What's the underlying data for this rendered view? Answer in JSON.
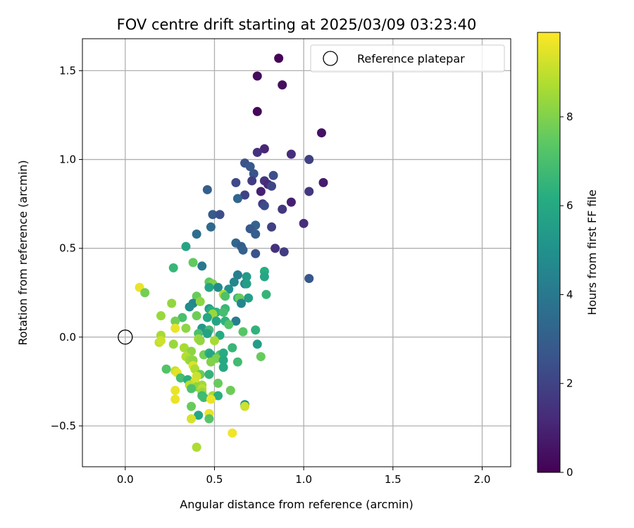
{
  "chart_data": {
    "type": "scatter",
    "title": "FOV centre drift starting at 2025/03/09 03:23:40",
    "xlabel": "Angular distance from reference (arcmin)",
    "ylabel": "Rotation from reference (arcmin)",
    "xlim": [
      -0.24,
      2.16
    ],
    "ylim": [
      -0.73,
      1.68
    ],
    "xticks": [
      0.0,
      0.5,
      1.0,
      1.5,
      2.0
    ],
    "xtick_labels": [
      "0.0",
      "0.5",
      "1.0",
      "1.5",
      "2.0"
    ],
    "yticks": [
      -0.5,
      0.0,
      0.5,
      1.0,
      1.5
    ],
    "ytick_labels": [
      "−0.5",
      "0.0",
      "0.5",
      "1.0",
      "1.5"
    ],
    "grid": true,
    "legend": {
      "placement": "top-right",
      "entries": [
        "Reference platepar"
      ]
    },
    "reference_point": {
      "name": "Reference platepar",
      "x": 0.0,
      "y": 0.0
    },
    "colorbar": {
      "label": "Hours from first FF file",
      "colormap": "viridis",
      "range": [
        0,
        9.9
      ],
      "ticks": [
        0,
        2,
        4,
        6,
        8
      ],
      "tick_labels": [
        "0",
        "2",
        "4",
        "6",
        "8"
      ]
    },
    "points": [
      {
        "x": 0.86,
        "y": 1.57,
        "c": 0.1
      },
      {
        "x": 0.74,
        "y": 1.47,
        "c": 0.3
      },
      {
        "x": 0.88,
        "y": 1.42,
        "c": 0.4
      },
      {
        "x": 0.74,
        "y": 1.27,
        "c": 0.2
      },
      {
        "x": 1.1,
        "y": 1.15,
        "c": 0.5
      },
      {
        "x": 0.78,
        "y": 1.06,
        "c": 1.1
      },
      {
        "x": 0.74,
        "y": 1.04,
        "c": 1.4
      },
      {
        "x": 0.93,
        "y": 1.03,
        "c": 1.3
      },
      {
        "x": 1.03,
        "y": 1.0,
        "c": 1.9
      },
      {
        "x": 0.67,
        "y": 0.98,
        "c": 2.5
      },
      {
        "x": 0.7,
        "y": 0.96,
        "c": 2.8
      },
      {
        "x": 0.72,
        "y": 0.92,
        "c": 2.6
      },
      {
        "x": 0.83,
        "y": 0.91,
        "c": 2.4
      },
      {
        "x": 0.62,
        "y": 0.87,
        "c": 2.2
      },
      {
        "x": 0.71,
        "y": 0.88,
        "c": 1.8
      },
      {
        "x": 0.78,
        "y": 0.88,
        "c": 1.5
      },
      {
        "x": 0.8,
        "y": 0.86,
        "c": 1.2
      },
      {
        "x": 1.11,
        "y": 0.87,
        "c": 0.8
      },
      {
        "x": 0.82,
        "y": 0.85,
        "c": 2.1
      },
      {
        "x": 0.46,
        "y": 0.83,
        "c": 3.0
      },
      {
        "x": 1.03,
        "y": 0.82,
        "c": 1.6
      },
      {
        "x": 0.76,
        "y": 0.82,
        "c": 0.9
      },
      {
        "x": 0.67,
        "y": 0.8,
        "c": 2.0
      },
      {
        "x": 0.63,
        "y": 0.78,
        "c": 3.3
      },
      {
        "x": 0.93,
        "y": 0.76,
        "c": 0.9
      },
      {
        "x": 0.77,
        "y": 0.75,
        "c": 1.7
      },
      {
        "x": 0.78,
        "y": 0.74,
        "c": 2.3
      },
      {
        "x": 0.88,
        "y": 0.72,
        "c": 1.6
      },
      {
        "x": 0.49,
        "y": 0.69,
        "c": 2.9
      },
      {
        "x": 0.53,
        "y": 0.69,
        "c": 2.4
      },
      {
        "x": 1.0,
        "y": 0.64,
        "c": 1.3
      },
      {
        "x": 0.48,
        "y": 0.62,
        "c": 3.4
      },
      {
        "x": 0.73,
        "y": 0.63,
        "c": 3.2
      },
      {
        "x": 0.7,
        "y": 0.61,
        "c": 2.8
      },
      {
        "x": 0.82,
        "y": 0.62,
        "c": 1.9
      },
      {
        "x": 0.4,
        "y": 0.58,
        "c": 3.6
      },
      {
        "x": 0.73,
        "y": 0.58,
        "c": 3.0
      },
      {
        "x": 0.62,
        "y": 0.53,
        "c": 3.3
      },
      {
        "x": 0.65,
        "y": 0.51,
        "c": 2.9
      },
      {
        "x": 0.66,
        "y": 0.49,
        "c": 3.1
      },
      {
        "x": 0.84,
        "y": 0.5,
        "c": 1.4
      },
      {
        "x": 0.89,
        "y": 0.48,
        "c": 1.8
      },
      {
        "x": 0.73,
        "y": 0.47,
        "c": 2.6
      },
      {
        "x": 0.34,
        "y": 0.51,
        "c": 5.8
      },
      {
        "x": 0.43,
        "y": 0.4,
        "c": 4.0
      },
      {
        "x": 0.27,
        "y": 0.39,
        "c": 6.6
      },
      {
        "x": 0.38,
        "y": 0.42,
        "c": 7.5
      },
      {
        "x": 0.63,
        "y": 0.35,
        "c": 4.2
      },
      {
        "x": 0.68,
        "y": 0.34,
        "c": 5.4
      },
      {
        "x": 0.78,
        "y": 0.37,
        "c": 6.2
      },
      {
        "x": 0.78,
        "y": 0.34,
        "c": 5.9
      },
      {
        "x": 1.03,
        "y": 0.33,
        "c": 2.7
      },
      {
        "x": 0.47,
        "y": 0.31,
        "c": 7.4
      },
      {
        "x": 0.49,
        "y": 0.3,
        "c": 8.0
      },
      {
        "x": 0.61,
        "y": 0.31,
        "c": 4.6
      },
      {
        "x": 0.67,
        "y": 0.3,
        "c": 4.4
      },
      {
        "x": 0.68,
        "y": 0.3,
        "c": 5.6
      },
      {
        "x": 0.47,
        "y": 0.28,
        "c": 5.8
      },
      {
        "x": 0.52,
        "y": 0.28,
        "c": 4.8
      },
      {
        "x": 0.58,
        "y": 0.27,
        "c": 5.0
      },
      {
        "x": 0.08,
        "y": 0.28,
        "c": 9.6
      },
      {
        "x": 0.11,
        "y": 0.25,
        "c": 7.8
      },
      {
        "x": 0.4,
        "y": 0.23,
        "c": 7.6
      },
      {
        "x": 0.55,
        "y": 0.24,
        "c": 8.8
      },
      {
        "x": 0.56,
        "y": 0.23,
        "c": 7.1
      },
      {
        "x": 0.63,
        "y": 0.22,
        "c": 6.4
      },
      {
        "x": 0.69,
        "y": 0.22,
        "c": 5.6
      },
      {
        "x": 0.79,
        "y": 0.24,
        "c": 6.5
      },
      {
        "x": 0.64,
        "y": 0.22,
        "c": 7.6
      },
      {
        "x": 0.65,
        "y": 0.19,
        "c": 4.5
      },
      {
        "x": 0.38,
        "y": 0.19,
        "c": 4.5
      },
      {
        "x": 0.26,
        "y": 0.19,
        "c": 8.3
      },
      {
        "x": 0.42,
        "y": 0.2,
        "c": 8.2
      },
      {
        "x": 0.36,
        "y": 0.17,
        "c": 4.8
      },
      {
        "x": 0.47,
        "y": 0.16,
        "c": 5.4
      },
      {
        "x": 0.48,
        "y": 0.15,
        "c": 6.2
      },
      {
        "x": 0.56,
        "y": 0.16,
        "c": 6.6
      },
      {
        "x": 0.51,
        "y": 0.14,
        "c": 6.4
      },
      {
        "x": 0.55,
        "y": 0.14,
        "c": 6.9
      },
      {
        "x": 0.49,
        "y": 0.13,
        "c": 8.4
      },
      {
        "x": 0.4,
        "y": 0.12,
        "c": 7.7
      },
      {
        "x": 0.2,
        "y": 0.12,
        "c": 8.4
      },
      {
        "x": 0.32,
        "y": 0.11,
        "c": 7.0
      },
      {
        "x": 0.46,
        "y": 0.11,
        "c": 5.9
      },
      {
        "x": 0.51,
        "y": 0.09,
        "c": 5.8
      },
      {
        "x": 0.56,
        "y": 0.09,
        "c": 6.4
      },
      {
        "x": 0.62,
        "y": 0.09,
        "c": 4.2
      },
      {
        "x": 0.28,
        "y": 0.09,
        "c": 7.8
      },
      {
        "x": 0.58,
        "y": 0.07,
        "c": 7.2
      },
      {
        "x": 0.43,
        "y": 0.05,
        "c": 5.3
      },
      {
        "x": 0.47,
        "y": 0.04,
        "c": 6.8
      },
      {
        "x": 0.34,
        "y": 0.05,
        "c": 8.2
      },
      {
        "x": 0.28,
        "y": 0.05,
        "c": 9.6
      },
      {
        "x": 0.66,
        "y": 0.03,
        "c": 7.3
      },
      {
        "x": 0.73,
        "y": 0.04,
        "c": 6.4
      },
      {
        "x": 0.41,
        "y": 0.02,
        "c": 7.0
      },
      {
        "x": 0.46,
        "y": 0.02,
        "c": 5.7
      },
      {
        "x": 0.53,
        "y": 0.01,
        "c": 6.1
      },
      {
        "x": 0.2,
        "y": 0.01,
        "c": 8.6
      },
      {
        "x": 0.41,
        "y": -0.01,
        "c": 8.5
      },
      {
        "x": 0.42,
        "y": -0.02,
        "c": 8.3
      },
      {
        "x": 0.19,
        "y": -0.03,
        "c": 9.0
      },
      {
        "x": 0.2,
        "y": -0.02,
        "c": 9.2
      },
      {
        "x": 0.5,
        "y": -0.02,
        "c": 8.6
      },
      {
        "x": 0.74,
        "y": -0.04,
        "c": 5.5
      },
      {
        "x": 0.27,
        "y": -0.04,
        "c": 8.4
      },
      {
        "x": 0.6,
        "y": -0.06,
        "c": 6.6
      },
      {
        "x": 0.33,
        "y": -0.06,
        "c": 8.6
      },
      {
        "x": 0.37,
        "y": -0.08,
        "c": 8.2
      },
      {
        "x": 0.44,
        "y": -0.1,
        "c": 7.8
      },
      {
        "x": 0.47,
        "y": -0.09,
        "c": 6.3
      },
      {
        "x": 0.48,
        "y": -0.1,
        "c": 5.9
      },
      {
        "x": 0.53,
        "y": -0.1,
        "c": 7.2
      },
      {
        "x": 0.55,
        "y": -0.09,
        "c": 6.1
      },
      {
        "x": 0.76,
        "y": -0.11,
        "c": 7.6
      },
      {
        "x": 0.34,
        "y": -0.11,
        "c": 8.8
      },
      {
        "x": 0.36,
        "y": -0.13,
        "c": 8.4
      },
      {
        "x": 0.38,
        "y": -0.13,
        "c": 8.2
      },
      {
        "x": 0.51,
        "y": -0.12,
        "c": 7.9
      },
      {
        "x": 0.48,
        "y": -0.14,
        "c": 8.0
      },
      {
        "x": 0.55,
        "y": -0.13,
        "c": 6.0
      },
      {
        "x": 0.63,
        "y": -0.14,
        "c": 6.8
      },
      {
        "x": 0.38,
        "y": -0.16,
        "c": 9.4
      },
      {
        "x": 0.55,
        "y": -0.17,
        "c": 6.0
      },
      {
        "x": 0.23,
        "y": -0.18,
        "c": 7.2
      },
      {
        "x": 0.28,
        "y": -0.19,
        "c": 9.1
      },
      {
        "x": 0.29,
        "y": -0.2,
        "c": 9.5
      },
      {
        "x": 0.39,
        "y": -0.18,
        "c": 8.7
      },
      {
        "x": 0.42,
        "y": -0.21,
        "c": 7.6
      },
      {
        "x": 0.47,
        "y": -0.21,
        "c": 6.5
      },
      {
        "x": 0.4,
        "y": -0.22,
        "c": 9.2
      },
      {
        "x": 0.31,
        "y": -0.23,
        "c": 6.9
      },
      {
        "x": 0.35,
        "y": -0.24,
        "c": 6.3
      },
      {
        "x": 0.39,
        "y": -0.25,
        "c": 9.3
      },
      {
        "x": 0.52,
        "y": -0.26,
        "c": 7.6
      },
      {
        "x": 0.36,
        "y": -0.27,
        "c": 8.9
      },
      {
        "x": 0.43,
        "y": -0.27,
        "c": 8.5
      },
      {
        "x": 0.4,
        "y": -0.28,
        "c": 8.2
      },
      {
        "x": 0.43,
        "y": -0.29,
        "c": 8.9
      },
      {
        "x": 0.37,
        "y": -0.29,
        "c": 7.1
      },
      {
        "x": 0.28,
        "y": -0.3,
        "c": 9.6
      },
      {
        "x": 0.43,
        "y": -0.31,
        "c": 8.4
      },
      {
        "x": 0.59,
        "y": -0.3,
        "c": 7.7
      },
      {
        "x": 0.43,
        "y": -0.33,
        "c": 6.7
      },
      {
        "x": 0.49,
        "y": -0.33,
        "c": 8.6
      },
      {
        "x": 0.52,
        "y": -0.33,
        "c": 6.3
      },
      {
        "x": 0.44,
        "y": -0.34,
        "c": 6.8
      },
      {
        "x": 0.28,
        "y": -0.35,
        "c": 9.6
      },
      {
        "x": 0.48,
        "y": -0.35,
        "c": 9.6
      },
      {
        "x": 0.67,
        "y": -0.38,
        "c": 5.0
      },
      {
        "x": 0.67,
        "y": -0.39,
        "c": 9.2
      },
      {
        "x": 0.37,
        "y": -0.39,
        "c": 7.6
      },
      {
        "x": 0.47,
        "y": -0.43,
        "c": 9.6
      },
      {
        "x": 0.41,
        "y": -0.44,
        "c": 5.9
      },
      {
        "x": 0.47,
        "y": -0.46,
        "c": 7.3
      },
      {
        "x": 0.37,
        "y": -0.46,
        "c": 9.3
      },
      {
        "x": 0.6,
        "y": -0.54,
        "c": 9.7
      },
      {
        "x": 0.4,
        "y": -0.62,
        "c": 8.7
      }
    ]
  }
}
